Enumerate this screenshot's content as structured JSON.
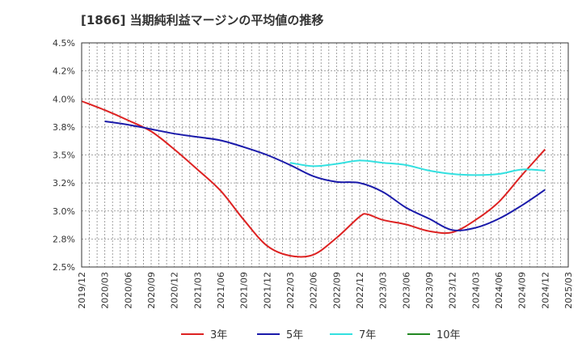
{
  "chart_data": {
    "type": "line",
    "title": "[1866]  当期純利益マージンの平均値の推移",
    "xlabel": "",
    "ylabel": "",
    "ylim": [
      2.5,
      4.5
    ],
    "y_ticks": [
      "4.5%",
      "4.2%",
      "4.0%",
      "3.8%",
      "3.5%",
      "3.2%",
      "3.0%",
      "2.8%",
      "2.5%"
    ],
    "x_ticks": [
      "2019/12",
      "2020/03",
      "2020/06",
      "2020/09",
      "2020/12",
      "2021/03",
      "2021/06",
      "2021/09",
      "2021/12",
      "2022/03",
      "2022/06",
      "2022/09",
      "2022/12",
      "2023/03",
      "2023/06",
      "2023/09",
      "2023/12",
      "2024/03",
      "2024/06",
      "2024/09",
      "2024/12",
      "2025/03"
    ],
    "grid": true,
    "legend_position": "bottom",
    "series": [
      {
        "name": "3年",
        "color": "#dd2222",
        "points": [
          [
            "2019/12",
            3.98
          ],
          [
            "2020/03",
            3.9
          ],
          [
            "2020/06",
            3.81
          ],
          [
            "2020/09",
            3.71
          ],
          [
            "2020/12",
            3.55
          ],
          [
            "2021/03",
            3.37
          ],
          [
            "2021/06",
            3.18
          ],
          [
            "2021/09",
            2.92
          ],
          [
            "2021/12",
            2.69
          ],
          [
            "2022/03",
            2.6
          ],
          [
            "2022/06",
            2.61
          ],
          [
            "2022/09",
            2.76
          ],
          [
            "2022/12",
            2.95
          ],
          [
            "2023/01",
            2.97
          ],
          [
            "2023/03",
            2.92
          ],
          [
            "2023/06",
            2.88
          ],
          [
            "2023/09",
            2.82
          ],
          [
            "2023/12",
            2.81
          ],
          [
            "2024/03",
            2.92
          ],
          [
            "2024/06",
            3.08
          ],
          [
            "2024/09",
            3.32
          ],
          [
            "2024/12",
            3.55
          ]
        ]
      },
      {
        "name": "5年",
        "color": "#1a1aaa",
        "points": [
          [
            "2020/03",
            3.8
          ],
          [
            "2020/06",
            3.77
          ],
          [
            "2020/09",
            3.73
          ],
          [
            "2020/12",
            3.69
          ],
          [
            "2021/03",
            3.66
          ],
          [
            "2021/06",
            3.63
          ],
          [
            "2021/09",
            3.57
          ],
          [
            "2021/12",
            3.5
          ],
          [
            "2022/03",
            3.41
          ],
          [
            "2022/06",
            3.31
          ],
          [
            "2022/09",
            3.26
          ],
          [
            "2022/12",
            3.25
          ],
          [
            "2023/03",
            3.17
          ],
          [
            "2023/06",
            3.03
          ],
          [
            "2023/09",
            2.93
          ],
          [
            "2023/12",
            2.83
          ],
          [
            "2024/03",
            2.85
          ],
          [
            "2024/06",
            2.93
          ],
          [
            "2024/09",
            3.05
          ],
          [
            "2024/12",
            3.19
          ]
        ]
      },
      {
        "name": "7年",
        "color": "#33e0e0",
        "points": [
          [
            "2022/03",
            3.43
          ],
          [
            "2022/06",
            3.4
          ],
          [
            "2022/09",
            3.42
          ],
          [
            "2022/12",
            3.45
          ],
          [
            "2023/03",
            3.43
          ],
          [
            "2023/06",
            3.41
          ],
          [
            "2023/09",
            3.36
          ],
          [
            "2023/12",
            3.33
          ],
          [
            "2024/03",
            3.32
          ],
          [
            "2024/06",
            3.33
          ],
          [
            "2024/09",
            3.37
          ],
          [
            "2024/12",
            3.36
          ]
        ]
      },
      {
        "name": "10年",
        "color": "#228822",
        "points": []
      }
    ]
  }
}
